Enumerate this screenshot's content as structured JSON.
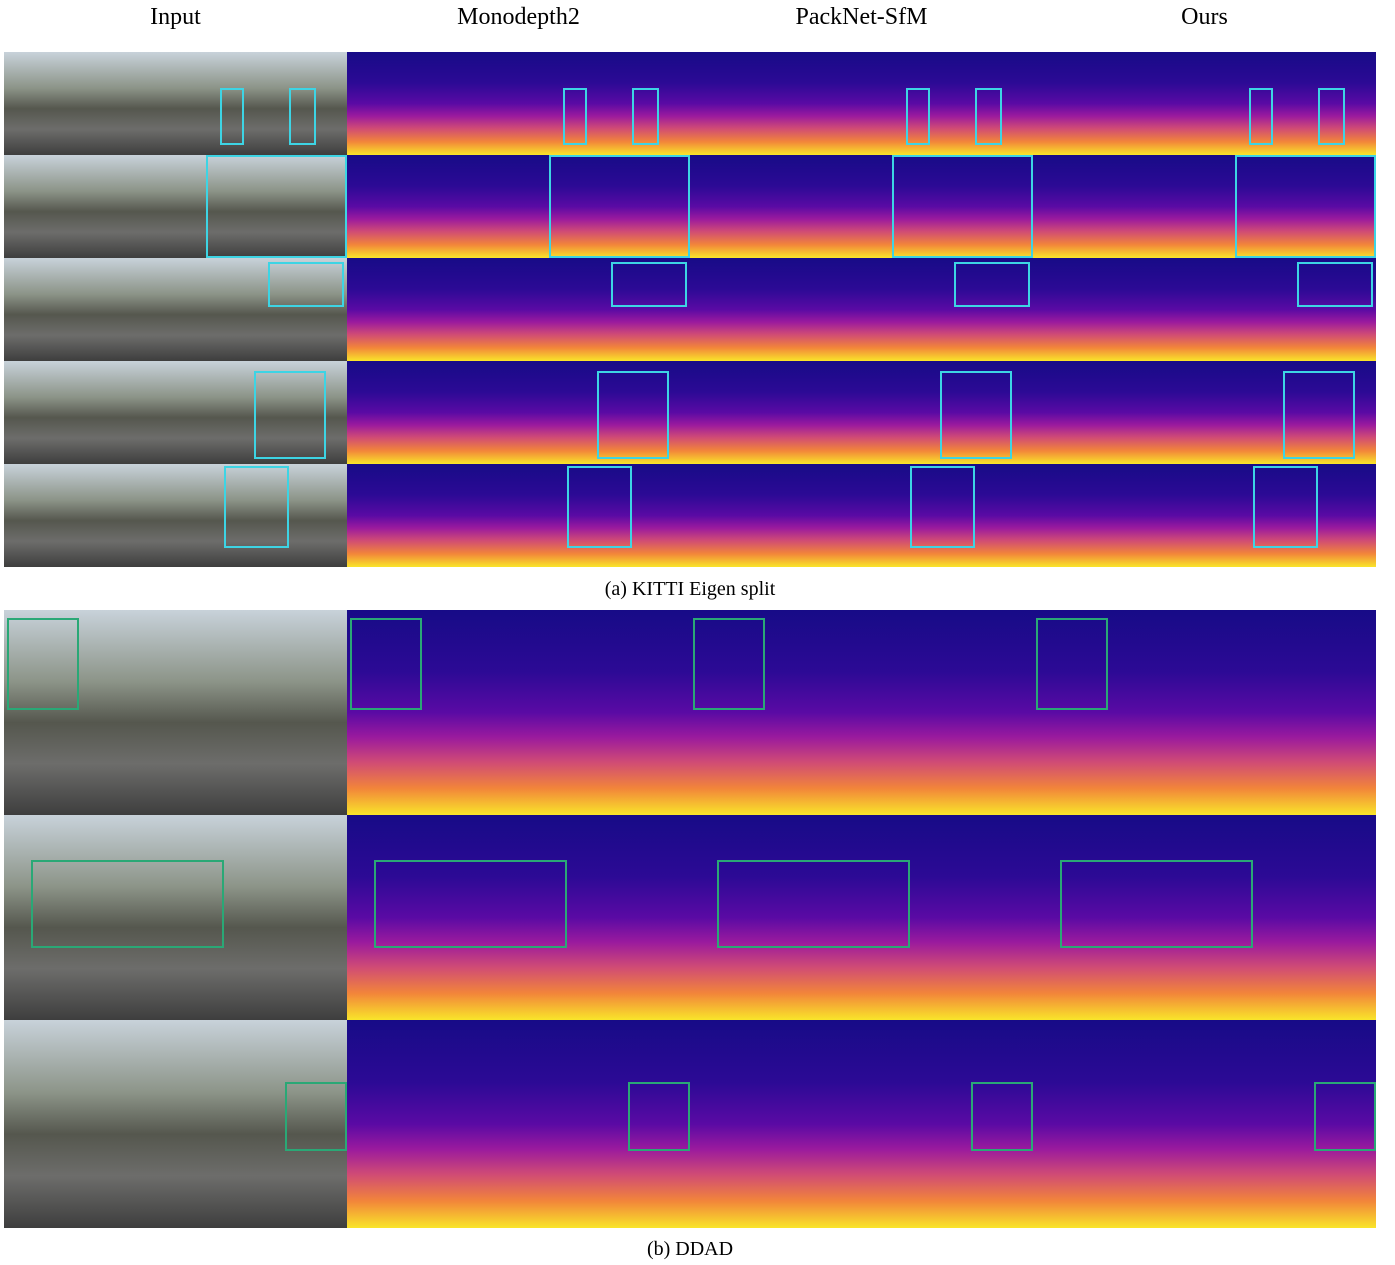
{
  "header": {
    "columns": [
      "Input",
      "Monodepth2",
      "PackNet-SfM",
      "Ours"
    ]
  },
  "sections": [
    {
      "caption": "(a) KITTI Eigen split"
    },
    {
      "caption": "(b) DDAD"
    }
  ]
}
